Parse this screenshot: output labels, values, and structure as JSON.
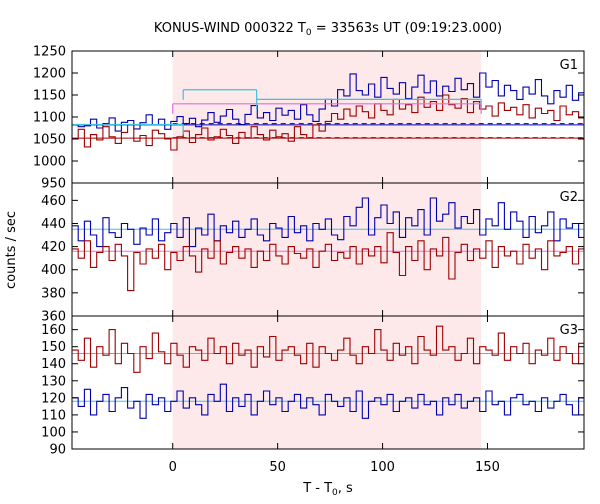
{
  "chart_data": {
    "type": "line",
    "title": "KONUS-WIND 000322 T",
    "title_sub": "0",
    "title_rest": " = 33563s UT (09:19:23.000)",
    "xlabel": "T - T",
    "xlabel_sub": "0",
    "xlabel_rest": ", s",
    "ylabel": "counts / sec",
    "xlim": [
      -48,
      196
    ],
    "x_ticks": [
      0,
      50,
      100,
      150
    ],
    "shaded_interval": [
      0,
      147
    ],
    "shaded_color": "#fde8ea",
    "colors": {
      "blue": "#0000b0",
      "red": "#a00000",
      "cyan": "#40c0e0",
      "magenta": "#e070e0"
    },
    "panels": [
      {
        "label": "G1",
        "ylim": [
          950,
          1250
        ],
        "y_ticks": [
          950,
          1000,
          1050,
          1100,
          1150,
          1200,
          1250
        ],
        "bin_width": 2.944,
        "x_start": -48,
        "series": [
          {
            "color": "blue",
            "values": [
              1082,
              1078,
              1080,
              1095,
              1075,
              1085,
              1098,
              1068,
              1088,
              1092,
              1073,
              1087,
              1105,
              1083,
              1095,
              1072,
              1090,
              1101,
              1085,
              1097,
              1078,
              1093,
              1110,
              1088,
              1102,
              1117,
              1095,
              1083,
              1106,
              1126,
              1098,
              1110,
              1092,
              1120,
              1104,
              1115,
              1095,
              1128,
              1105,
              1090,
              1118,
              1140,
              1125,
              1162,
              1148,
              1198,
              1160,
              1150,
              1175,
              1145,
              1190,
              1165,
              1152,
              1178,
              1142,
              1168,
              1195,
              1155,
              1182,
              1148,
              1170,
              1158,
              1188,
              1162,
              1176,
              1145,
              1200,
              1168,
              1183,
              1148,
              1172,
              1160,
              1140,
              1168,
              1152,
              1185,
              1148,
              1130,
              1160,
              1145,
              1172,
              1138,
              1155,
              1125,
              1168,
              1142,
              1130,
              1158,
              1122,
              1148,
              1135,
              1162,
              1128,
              1145,
              1118,
              1152,
              1130,
              1140,
              1168,
              1128,
              1150,
              1122,
              1140,
              1108,
              1132,
              1115,
              1125,
              1098,
              1118,
              1105,
              1088,
              1112,
              1095,
              1120,
              1100,
              1085,
              1108,
              1126,
              1092,
              1110,
              1098,
              1145,
              1115,
              1092,
              1105,
              1080,
              1118,
              1096,
              1122,
              1108,
              1090,
              1118,
              1104
            ]
          },
          {
            "color": "red",
            "values": [
              1050,
              1072,
              1032,
              1060,
              1048,
              1078,
              1055,
              1040,
              1065,
              1082,
              1045,
              1058,
              1035,
              1070,
              1062,
              1050,
              1025,
              1055,
              1068,
              1042,
              1060,
              1075,
              1048,
              1055,
              1072,
              1058,
              1040,
              1065,
              1052,
              1078,
              1060,
              1048,
              1070,
              1055,
              1062,
              1045,
              1078,
              1060,
              1052,
              1082,
              1068,
              1090,
              1108,
              1095,
              1118,
              1102,
              1125,
              1112,
              1098,
              1130,
              1115,
              1105,
              1140,
              1118,
              1128,
              1110,
              1145,
              1122,
              1135,
              1115,
              1150,
              1128,
              1120,
              1142,
              1110,
              1135,
              1118,
              1125,
              1102,
              1132,
              1115,
              1122,
              1105,
              1128,
              1098,
              1120,
              1108,
              1115,
              1092,
              1125,
              1105,
              1112,
              1098,
              1122,
              1108,
              1095,
              1118,
              1102,
              1090,
              1112,
              1098,
              1105,
              1085,
              1110,
              1095,
              1100,
              1088,
              1108,
              1092,
              1080,
              1102,
              1090,
              1095,
              1075,
              1098,
              1082,
              1088,
              1070,
              1092,
              1078,
              1085,
              1062,
              1080,
              1070,
              1055,
              1075,
              1060,
              1068,
              1050,
              1065,
              1058,
              1072,
              1048,
              1060,
              1045,
              1068,
              1052,
              1040,
              1062,
              1048,
              1055,
              1045,
              1058
            ]
          }
        ],
        "bg_levels": [
          {
            "color": "blue",
            "value": 1082,
            "style": "solid"
          },
          {
            "color": "red",
            "value": 1052,
            "style": "solid"
          },
          {
            "color": "blue",
            "value": 1085,
            "style": "dashed",
            "x_range": [
              0,
              196
            ]
          },
          {
            "color": "red",
            "value": 1053,
            "style": "dashed",
            "x_range": [
              0,
              196
            ]
          }
        ],
        "segments": [
          {
            "color": "cyan",
            "x_range": [
              -48,
              5
            ],
            "value": 1083
          },
          {
            "color": "cyan",
            "x_range": [
              5,
              40
            ],
            "value": 1162
          },
          {
            "color": "cyan",
            "x_range": [
              40,
              147
            ],
            "value": 1140
          },
          {
            "color": "magenta",
            "x_range": [
              0,
              147
            ],
            "value": 1130
          }
        ]
      },
      {
        "label": "G2",
        "ylim": [
          360,
          475
        ],
        "y_ticks": [
          360,
          380,
          400,
          420,
          440,
          460
        ],
        "bin_width": 2.944,
        "x_start": -48,
        "series": [
          {
            "color": "blue",
            "values": [
              438,
              425,
              442,
              430,
              420,
              445,
              432,
              428,
              440,
              435,
              422,
              436,
              430,
              444,
              425,
              432,
              440,
              428,
              445,
              420,
              436,
              430,
              448,
              425,
              438,
              432,
              442,
              428,
              435,
              444,
              430,
              425,
              440,
              436,
              428,
              446,
              432,
              438,
              425,
              440,
              435,
              444,
              430,
              426,
              446,
              438,
              454,
              462,
              430,
              445,
              456,
              440,
              450,
              428,
              445,
              438,
              452,
              430,
              462,
              442,
              448,
              458,
              436,
              446,
              440,
              452,
              430,
              444,
              438,
              458,
              435,
              450,
              442,
              428,
              446,
              432,
              438,
              450,
              425,
              444,
              436,
              440,
              428,
              445,
              432,
              450,
              438,
              442,
              425,
              446,
              435,
              452,
              440,
              430,
              448,
              436,
              458,
              432,
              445,
              440,
              452,
              428,
              446,
              438,
              456,
              430,
              445,
              440,
              458,
              436,
              450,
              442,
              428,
              446,
              438,
              452,
              430,
              444,
              440,
              436,
              432,
              448,
              438,
              426,
              444,
              436,
              440,
              430,
              446,
              438,
              432,
              440,
              436
            ]
          },
          {
            "color": "red",
            "values": [
              418,
              410,
              425,
              402,
              415,
              420,
              408,
              422,
              412,
              382,
              415,
              405,
              418,
              410,
              422,
              400,
              415,
              408,
              420,
              412,
              398,
              418,
              410,
              425,
              405,
              415,
              420,
              410,
              418,
              402,
              416,
              408,
              422,
              412,
              405,
              420,
              414,
              410,
              418,
              402,
              416,
              422,
              408,
              415,
              410,
              420,
              405,
              418,
              412,
              420,
              406,
              432,
              415,
              395,
              420,
              408,
              425,
              400,
              418,
              412,
              428,
              392,
              415,
              422,
              408,
              418,
              410,
              425,
              402,
              420,
              412,
              416,
              405,
              422,
              410,
              418,
              400,
              425,
              412,
              415,
              420,
              405,
              418,
              410,
              428,
              402,
              415,
              420,
              408,
              416,
              412,
              425,
              398,
              418,
              410,
              422,
              405,
              415,
              420,
              408,
              424,
              400,
              418,
              412,
              420,
              405,
              416,
              410,
              422,
              402,
              415,
              418,
              408,
              420,
              412,
              398,
              418,
              410,
              416,
              405,
              420,
              412,
              418,
              402,
              416,
              410,
              420,
              405,
              415,
              408,
              418,
              412,
              400
            ]
          }
        ],
        "bg_levels": [
          {
            "color": "cyan",
            "value": 435,
            "style": "solid"
          },
          {
            "color": "magenta",
            "value": 416,
            "style": "solid"
          }
        ],
        "segments": []
      },
      {
        "label": "G3",
        "ylim": [
          90,
          168
        ],
        "y_ticks": [
          90,
          100,
          110,
          120,
          130,
          140,
          150,
          160
        ],
        "bin_width": 2.944,
        "x_start": -48,
        "series": [
          {
            "color": "red",
            "values": [
              148,
              142,
              155,
              138,
              150,
              145,
              160,
              140,
              152,
              146,
              135,
              150,
              143,
              158,
              147,
              140,
              152,
              145,
              138,
              150,
              148,
              142,
              155,
              146,
              150,
              140,
              152,
              145,
              148,
              138,
              150,
              144,
              156,
              142,
              148,
              150,
              145,
              140,
              152,
              138,
              150,
              146,
              142,
              148,
              155,
              145,
              140,
              150,
              146,
              160,
              148,
              142,
              152,
              145,
              150,
              140,
              156,
              148,
              145,
              162,
              148,
              150,
              142,
              146,
              155,
              140,
              150,
              148,
              145,
              158,
              142,
              150,
              146,
              152,
              140,
              148,
              145,
              155,
              142,
              150,
              146,
              140,
              152,
              148,
              145,
              158,
              142,
              150,
              146,
              140,
              152,
              145,
              148,
              142,
              150,
              146,
              155,
              140,
              148,
              145,
              152,
              142,
              150,
              146,
              148,
              140,
              152,
              145,
              148,
              142,
              150,
              146,
              140,
              152,
              145,
              148,
              138,
              150,
              146,
              142,
              148,
              145,
              150,
              140,
              148,
              146,
              142,
              150,
              145,
              148,
              140,
              152,
              146
            ]
          },
          {
            "color": "blue",
            "values": [
              120,
              115,
              125,
              110,
              118,
              122,
              112,
              120,
              126,
              114,
              118,
              108,
              122,
              116,
              120,
              112,
              118,
              124,
              114,
              120,
              116,
              110,
              122,
              118,
              128,
              112,
              120,
              115,
              122,
              110,
              118,
              124,
              116,
              120,
              112,
              118,
              122,
              114,
              120,
              116,
              110,
              122,
              118,
              115,
              120,
              112,
              124,
              108,
              118,
              120,
              116,
              122,
              112,
              118,
              120,
              114,
              122,
              116,
              118,
              110,
              120,
              116,
              122,
              114,
              118,
              120,
              112,
              124,
              116,
              118,
              110,
              120,
              122,
              116,
              118,
              112,
              120,
              114,
              118,
              122,
              116,
              110,
              120,
              118,
              114,
              122,
              116,
              120,
              112,
              118,
              120,
              114,
              122,
              118,
              116,
              108,
              120,
              118,
              114,
              122,
              116,
              120,
              112,
              118,
              124,
              116,
              118,
              110,
              122,
              116,
              120,
              114,
              118,
              122,
              112,
              120,
              116,
              118,
              110,
              122,
              118,
              116,
              120,
              112,
              118,
              122,
              116,
              114,
              120,
              118,
              110,
              116,
              120
            ]
          }
        ],
        "bg_levels": [
          {
            "color": "magenta",
            "value": 146,
            "style": "solid"
          },
          {
            "color": "cyan",
            "value": 118,
            "style": "solid"
          }
        ],
        "segments": []
      }
    ]
  }
}
